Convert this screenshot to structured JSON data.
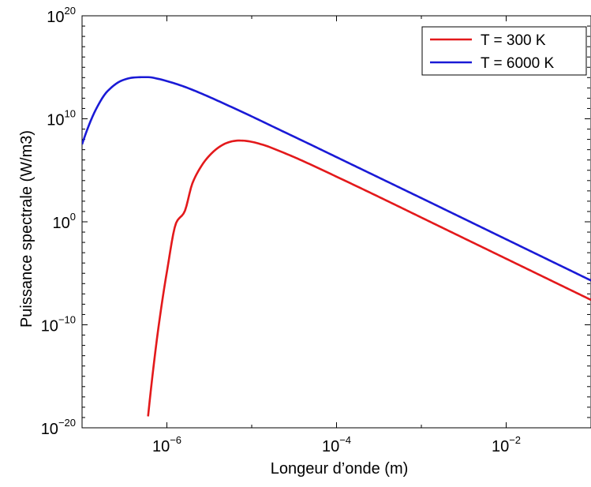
{
  "chart_data": {
    "type": "line",
    "title": "",
    "xlabel": "Longeur d’onde (m)",
    "ylabel": "Puissance spectrale (W/m3)",
    "xscale": "log",
    "yscale": "log",
    "xlim": [
      1e-07,
      0.1
    ],
    "ylim": [
      1e-20,
      1e+20
    ],
    "grid": false,
    "legend_position": "top-right",
    "x_ticks": [
      {
        "value": 1e-06,
        "base": "10",
        "exp": "−6"
      },
      {
        "value": 0.0001,
        "base": "10",
        "exp": "−4"
      },
      {
        "value": 0.01,
        "base": "10",
        "exp": "−2"
      }
    ],
    "y_ticks": [
      {
        "value": 1e-20,
        "base": "10",
        "exp": "−20"
      },
      {
        "value": 1e-10,
        "base": "10",
        "exp": "−10"
      },
      {
        "value": 1,
        "base": "10",
        "exp": "0"
      },
      {
        "value": 10000000000.0,
        "base": "10",
        "exp": "10"
      },
      {
        "value": 1e+20,
        "base": "10",
        "exp": "20"
      }
    ],
    "series": [
      {
        "name": "T = 300 K",
        "color": "#e3191b",
        "x": [
          6e-07,
          7e-07,
          8e-07,
          1e-06,
          1.3e-06,
          1.6e-06,
          2e-06,
          2.5e-06,
          3e-06,
          4e-06,
          5e-06,
          6e-06,
          7e-06,
          8e-06,
          1e-05,
          1.2e-05,
          1.5e-05,
          2e-05,
          3e-05,
          5e-05,
          0.0001,
          0.0002,
          0.0005,
          0.001,
          0.01,
          0.1
        ],
        "y": [
          1.3e-19,
          1.3e-14,
          7.8e-11,
          1.4e-05,
          0.96,
          8.1,
          5500.0,
          200000.0,
          1600000.0,
          15000000.0,
          43000000.0,
          67000000.0,
          77000000.0,
          75000000.0,
          58000000.0,
          40000000.0,
          23000000.0,
          9100000.0,
          2300000.0,
          350000.0,
          24000.0,
          1600.0,
          42.0,
          2.6,
          0.00026,
          2.6e-08
        ]
      },
      {
        "name": "T = 6000 K",
        "color": "#1a1ad6",
        "x": [
          1e-07,
          1.5e-07,
          2e-07,
          3e-07,
          4e-07,
          5e-07,
          6e-07,
          8e-07,
          1e-06,
          1.5e-06,
          2e-06,
          3e-06,
          5e-06,
          1e-05,
          2e-05,
          5e-05,
          0.0001,
          0.001,
          0.01,
          0.1
        ],
        "y": [
          33000000.0,
          130000000000.0,
          4900000000000.0,
          55000000000000.0,
          100000000000000.0,
          110000000000000.0,
          110000000000000.0,
          74000000000000.0,
          46000000000000.0,
          16000000000000.0,
          6500000000000.0,
          1600000000000.0,
          240000000000.0,
          17000000000.0,
          1100000000.0,
          30000000.0,
          1900000.0,
          200.0,
          0.02,
          2e-06
        ]
      }
    ]
  }
}
